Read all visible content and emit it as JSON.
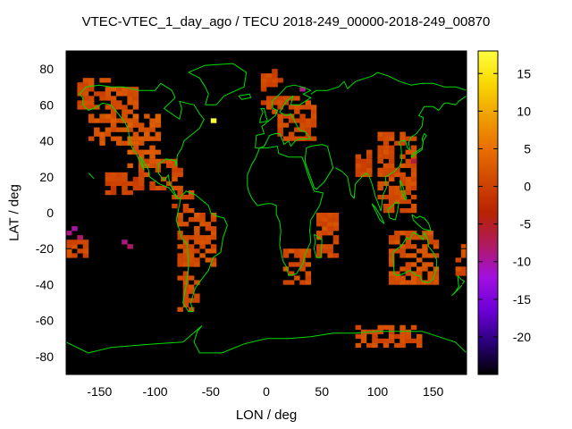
{
  "chart_data": {
    "type": "heatmap",
    "title": "VTEC-VTEC_1_day_ago / TECU 2018-249_00000-2018-249_00870",
    "xlabel": "LON / deg",
    "ylabel": "LAT / deg",
    "xlim": [
      -180,
      180
    ],
    "ylim": [
      -90,
      90
    ],
    "xticks": [
      -150,
      -100,
      -50,
      0,
      50,
      100,
      150
    ],
    "yticks": [
      -80,
      -60,
      -40,
      -20,
      0,
      20,
      40,
      60,
      80
    ],
    "colorbar": {
      "range": [
        -25,
        18
      ],
      "ticks": [
        15,
        10,
        5,
        0,
        -5,
        -10,
        -15,
        -20
      ],
      "colors": [
        "#000000",
        "#2a007a",
        "#6e00d8",
        "#a010e0",
        "#b01a60",
        "#b82200",
        "#d04800",
        "#e87000",
        "#f0a000",
        "#f8d800",
        "#ffff40"
      ]
    },
    "background": "#000000",
    "coastline_color": "#00dd00",
    "cell_size_deg": [
      5,
      2.5
    ],
    "regions": [
      {
        "lon": [
          -170,
          -140
        ],
        "lat": [
          57.5,
          75
        ],
        "value": 1
      },
      {
        "lon": [
          -140,
          -115
        ],
        "lat": [
          45,
          70
        ],
        "value": 1.5
      },
      {
        "lon": [
          -160,
          -125
        ],
        "lat": [
          37.5,
          55
        ],
        "value": 2
      },
      {
        "lon": [
          -125,
          -95
        ],
        "lat": [
          25,
          55
        ],
        "value": 2.5
      },
      {
        "lon": [
          -115,
          -75
        ],
        "lat": [
          12.5,
          30
        ],
        "value": 1
      },
      {
        "lon": [
          -85,
          -65
        ],
        "lat": [
          0,
          12.5
        ],
        "value": 1
      },
      {
        "lon": [
          -80,
          -60
        ],
        "lat": [
          -55,
          0
        ],
        "value": 1
      },
      {
        "lon": [
          -65,
          -45
        ],
        "lat": [
          -30,
          0
        ],
        "value": 1.5
      },
      {
        "lon": [
          10,
          45
        ],
        "lat": [
          40,
          65
        ],
        "value": 1
      },
      {
        "lon": [
          -5,
          15
        ],
        "lat": [
          55,
          75
        ],
        "value": 0.5
      },
      {
        "lon": [
          15,
          40
        ],
        "lat": [
          -40,
          -20
        ],
        "value": 1
      },
      {
        "lon": [
          45,
          65
        ],
        "lat": [
          -25,
          0
        ],
        "value": 1
      },
      {
        "lon": [
          80,
          95
        ],
        "lat": [
          20,
          35
        ],
        "value": 0.5
      },
      {
        "lon": [
          100,
          135
        ],
        "lat": [
          0,
          45
        ],
        "value": 1
      },
      {
        "lon": [
          110,
          155
        ],
        "lat": [
          -40,
          -10
        ],
        "value": 1.5
      },
      {
        "lon": [
          -180,
          -160
        ],
        "lat": [
          -25,
          -15
        ],
        "value": 1
      },
      {
        "lon": [
          -5,
          10
        ],
        "lat": [
          70,
          80
        ],
        "value": 0.5
      },
      {
        "lon": [
          80,
          140
        ],
        "lat": [
          -75,
          -62.5
        ],
        "value": 1
      },
      {
        "lon": [
          -110,
          -95
        ],
        "lat": [
          40,
          50
        ],
        "value": 2.5
      },
      {
        "lon": [
          -145,
          -110
        ],
        "lat": [
          10,
          22.5
        ],
        "value": 0
      },
      {
        "lon": [
          170,
          180
        ],
        "lat": [
          -35,
          -15
        ],
        "value": 1
      }
    ],
    "cells": [
      {
        "lon": -50,
        "lat": 50,
        "value": 18
      },
      {
        "lon": -175,
        "lat": -10,
        "value": -10
      },
      {
        "lon": -170,
        "lat": -15,
        "value": -8
      },
      {
        "lon": -180,
        "lat": -12.5,
        "value": -9
      },
      {
        "lon": -130,
        "lat": -17.5,
        "value": -9
      },
      {
        "lon": -125,
        "lat": -20,
        "value": -8
      },
      {
        "lon": 30,
        "lat": 67.5,
        "value": -9
      },
      {
        "lon": 130,
        "lat": 27.5,
        "value": -6
      }
    ]
  }
}
